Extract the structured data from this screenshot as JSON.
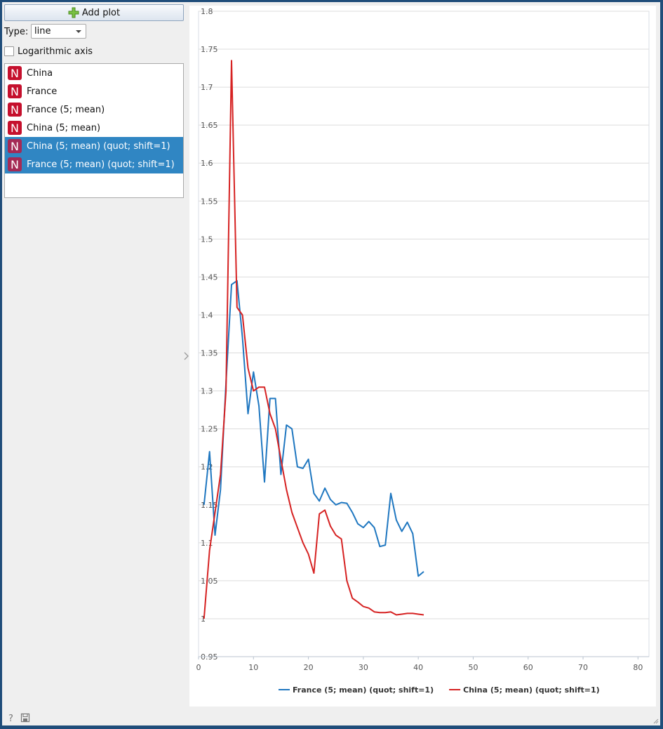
{
  "toolbar": {
    "add_plot_label": "Add plot"
  },
  "type": {
    "label": "Type:",
    "selected": "line"
  },
  "log_axis": {
    "label": "Logarithmic axis",
    "checked": false
  },
  "series_list": [
    {
      "badge": "N",
      "label": "China",
      "selected": false
    },
    {
      "badge": "N",
      "label": "France",
      "selected": false
    },
    {
      "badge": "N",
      "label": "France (5; mean)",
      "selected": false
    },
    {
      "badge": "N",
      "label": "China (5; mean)",
      "selected": false
    },
    {
      "badge": "N",
      "label": "China (5; mean) (quot; shift=1)",
      "selected": true
    },
    {
      "badge": "N",
      "label": "France (5; mean) (quot; shift=1)",
      "selected": true
    }
  ],
  "colors": {
    "france": "#1f77c0",
    "china": "#d62222",
    "selection": "#3086c3",
    "badge": "#c5102d"
  },
  "chart_data": {
    "type": "line",
    "xlim": [
      0,
      82
    ],
    "ylim": [
      0.95,
      1.8
    ],
    "xticks": [
      "0",
      "10",
      "20",
      "30",
      "40",
      "50",
      "60",
      "70",
      "80"
    ],
    "yticks": [
      "0.95",
      "1",
      "1.05",
      "1.1",
      "1.15",
      "1.2",
      "1.25",
      "1.3",
      "1.35",
      "1.4",
      "1.45",
      "1.5",
      "1.55",
      "1.6",
      "1.65",
      "1.7",
      "1.75",
      "1.8"
    ],
    "legend": "bottom",
    "grid": true,
    "x": [
      1,
      2,
      3,
      4,
      5,
      6,
      7,
      8,
      9,
      10,
      11,
      12,
      13,
      14,
      15,
      16,
      17,
      18,
      19,
      20,
      21,
      22,
      23,
      24,
      25,
      26,
      27,
      28,
      29,
      30,
      31,
      32,
      33,
      34,
      35,
      36,
      37,
      38,
      39,
      40,
      41
    ],
    "series": [
      {
        "name": "France (5; mean) (quot; shift=1)",
        "color": "#1f77c0",
        "values": [
          1.15,
          1.22,
          1.11,
          1.17,
          1.31,
          1.44,
          1.445,
          1.37,
          1.27,
          1.325,
          1.28,
          1.18,
          1.29,
          1.29,
          1.19,
          1.255,
          1.25,
          1.2,
          1.198,
          1.21,
          1.165,
          1.155,
          1.172,
          1.157,
          1.15,
          1.153,
          1.152,
          1.14,
          1.125,
          1.12,
          1.128,
          1.12,
          1.095,
          1.097,
          1.165,
          1.13,
          1.115,
          1.127,
          1.112,
          1.056,
          1.062
        ]
      },
      {
        "name": "China (5; mean) (quot; shift=1)",
        "color": "#d62222",
        "values": [
          1.0,
          1.09,
          1.14,
          1.19,
          1.3,
          1.735,
          1.41,
          1.4,
          1.33,
          1.3,
          1.305,
          1.305,
          1.27,
          1.25,
          1.21,
          1.17,
          1.14,
          1.12,
          1.1,
          1.085,
          1.06,
          1.138,
          1.143,
          1.122,
          1.11,
          1.105,
          1.05,
          1.027,
          1.022,
          1.016,
          1.014,
          1.009,
          1.008,
          1.008,
          1.009,
          1.005,
          1.006,
          1.007,
          1.007,
          1.006,
          1.005
        ]
      }
    ]
  }
}
